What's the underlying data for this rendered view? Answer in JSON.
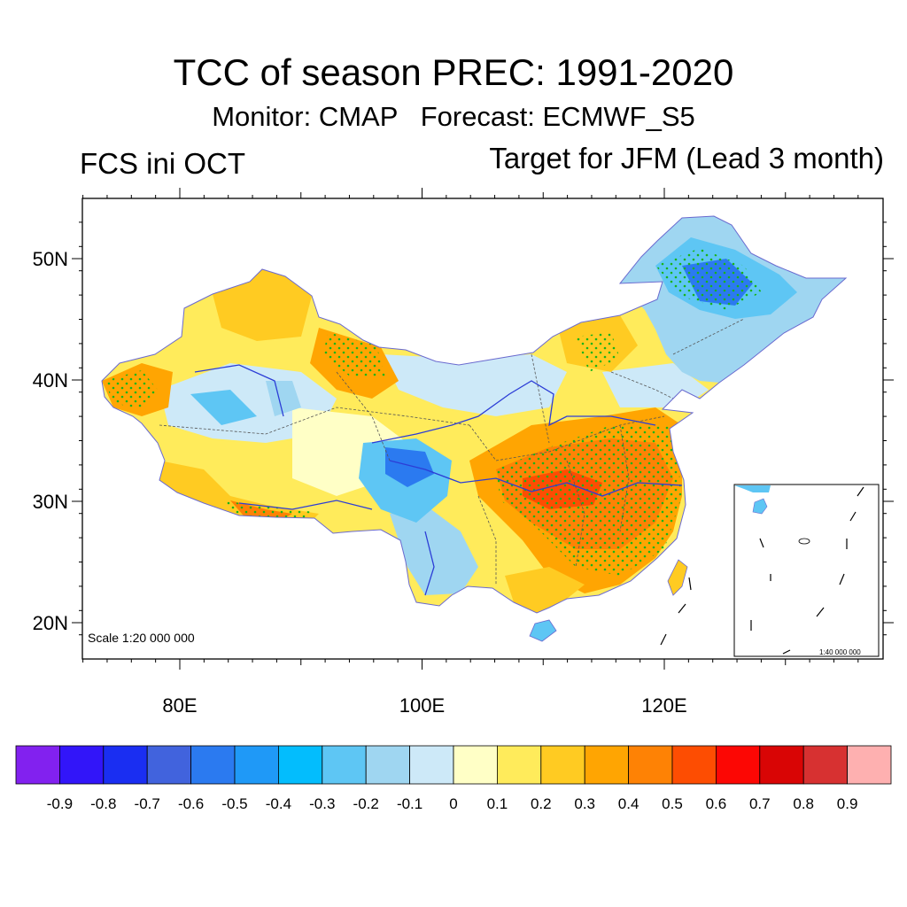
{
  "title": "TCC of season PREC: 1991-2020",
  "subtitle_monitor": "Monitor: CMAP",
  "subtitle_forecast": "Forecast: ECMWF_S5",
  "left_label": "FCS ini OCT",
  "right_label": "Target for JFM (Lead 3 month)",
  "scale_main": "Scale 1:20 000 000",
  "scale_inset": "1:40 000 000",
  "lat_labels": [
    "50N",
    "40N",
    "30N",
    "20N"
  ],
  "lat_values": [
    50,
    40,
    30,
    20
  ],
  "lon_labels": [
    "80E",
    "100E",
    "120E"
  ],
  "lon_values": [
    80,
    100,
    120
  ],
  "colorbar": {
    "colors": [
      "#8221ef",
      "#3215f9",
      "#1a2ef2",
      "#4163dd",
      "#2b7af0",
      "#1f99f7",
      "#03bdfd",
      "#5ec6f4",
      "#9fd6f1",
      "#cde9f8",
      "#ffffc6",
      "#ffeb5b",
      "#ffcb22",
      "#ffa502",
      "#fe8205",
      "#fd4d02",
      "#fc0704",
      "#d90505",
      "#d73131",
      "#feb0b0"
    ],
    "labels": [
      "-0.9",
      "-0.8",
      "-0.7",
      "-0.6",
      "-0.5",
      "-0.4",
      "-0.3",
      "-0.2",
      "-0.1",
      "0",
      "0.1",
      "0.2",
      "0.3",
      "0.4",
      "0.5",
      "0.6",
      "0.7",
      "0.8",
      "0.9"
    ]
  },
  "map_colors": {
    "land_base": "#ffeb5b",
    "ocean": "#ffffff",
    "river": "#2c3dd6",
    "border": "#555555",
    "stipple": "#19b319"
  }
}
